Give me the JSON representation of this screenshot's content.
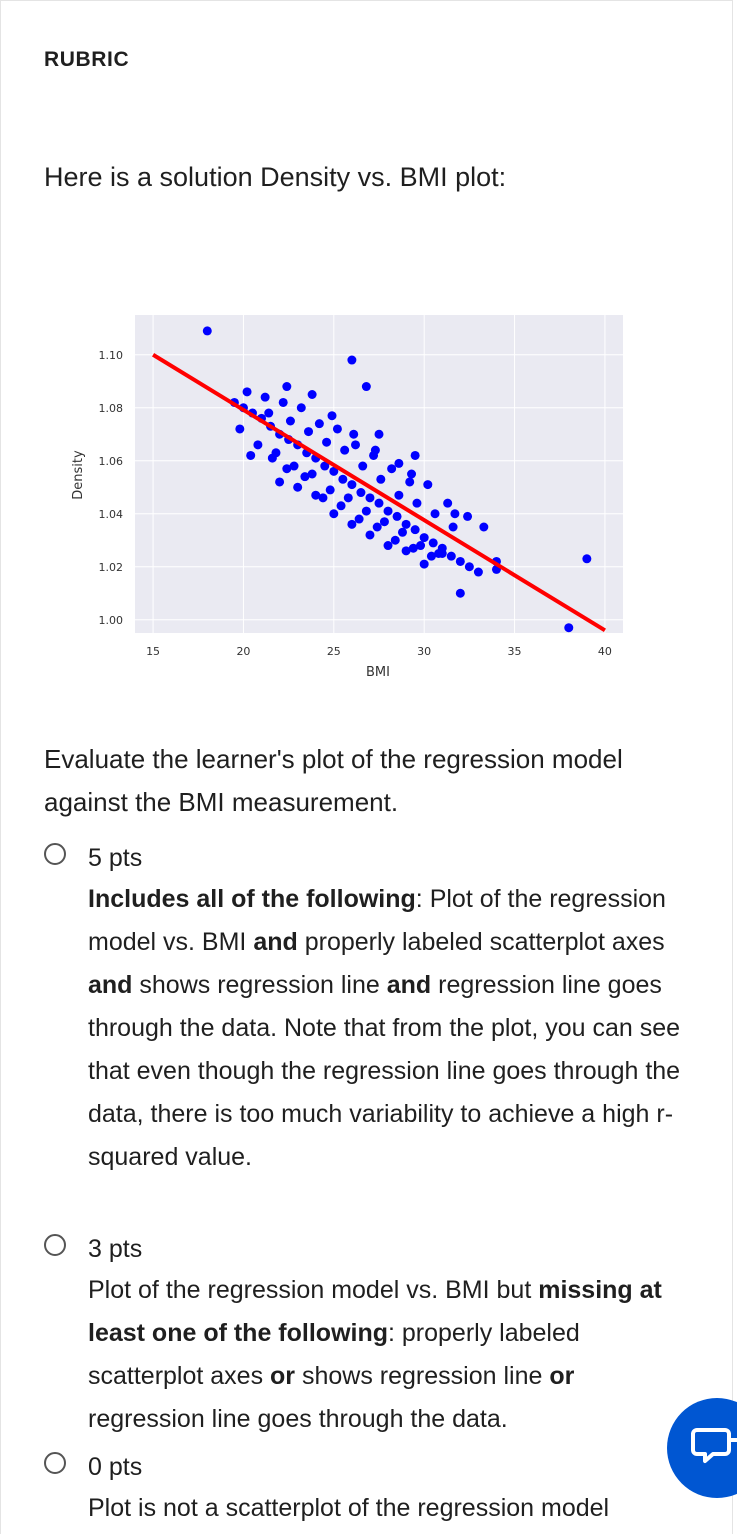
{
  "heading": "RUBRIC",
  "intro": "Here is a solution Density vs. BMI plot:",
  "question": "Evaluate the learner's plot of the regression model against the BMI measurement.",
  "options": [
    {
      "points": "5 pts",
      "parts": [
        "Includes all of the following",
        ": Plot of the regression model vs. BMI ",
        "and",
        " properly labeled scatterplot axes ",
        "and",
        " shows regression line ",
        "and",
        " regression line goes through the data. Note that from the plot, you can see that even though the regression line goes through the data, there is too much variability to achieve a high r-squared value."
      ]
    },
    {
      "points": "3 pts",
      "parts": [
        "Plot of the regression model vs. BMI but ",
        "missing at least one of the following",
        ": properly labeled scatterplot axes ",
        "or",
        " shows regression line ",
        "or",
        " regression line goes through the data."
      ]
    },
    {
      "points": "0 pts",
      "parts": [
        "Plot is not a scatterplot of the regression model"
      ]
    }
  ],
  "colors": {
    "accent": "#0056d2",
    "points": "#0000ff",
    "line": "#ff0000",
    "plot_bg": "#eaeaf2"
  },
  "chat_icon": "chat-icon",
  "chart_data": {
    "type": "scatter",
    "title": "",
    "xlabel": "BMI",
    "ylabel": "Density",
    "xlim": [
      14,
      41
    ],
    "ylim": [
      0.995,
      1.115
    ],
    "xticks": [
      "15",
      "20",
      "25",
      "30",
      "35",
      "40"
    ],
    "yticks": [
      "1.00",
      "1.02",
      "1.04",
      "1.06",
      "1.08",
      "1.10"
    ],
    "grid": true,
    "regression_line": {
      "x": [
        15,
        40
      ],
      "y": [
        1.1,
        0.996
      ]
    },
    "series": [
      {
        "x": [
          18,
          19.5,
          20,
          20.5,
          21,
          21.5,
          22,
          22.5,
          23,
          23.5,
          24,
          24.5,
          25,
          25.5,
          26,
          26.5,
          27,
          27.5,
          28,
          28.5,
          29,
          29.5,
          30,
          30.5,
          31,
          31.5,
          32,
          32.5,
          33,
          34,
          20.2,
          21.2,
          22.2,
          23.2,
          24.2,
          25.2,
          26.2,
          27.2,
          28.2,
          29.2,
          20.8,
          21.8,
          22.8,
          23.8,
          24.8,
          25.8,
          26.8,
          27.8,
          28.8,
          29.8,
          30.8,
          19.8,
          21.4,
          22.6,
          23.6,
          24.6,
          25.6,
          26.6,
          27.6,
          28.6,
          29.6,
          30.6,
          31.6,
          20.4,
          21.6,
          22.4,
          23.4,
          24.4,
          25.4,
          26.4,
          27.4,
          28.4,
          29.4,
          30.4,
          22.4,
          23.8,
          24.9,
          26.1,
          27.3,
          28.6,
          29.3,
          30.2,
          31.3,
          32.4,
          33.3,
          22,
          23,
          24,
          25,
          26,
          27,
          28,
          29,
          30,
          31,
          26,
          26.8,
          29.5,
          32,
          34,
          39,
          38,
          27.5,
          31.7
        ],
        "y": [
          1.109,
          1.082,
          1.08,
          1.078,
          1.076,
          1.073,
          1.07,
          1.068,
          1.066,
          1.063,
          1.061,
          1.058,
          1.056,
          1.053,
          1.051,
          1.048,
          1.046,
          1.044,
          1.041,
          1.039,
          1.036,
          1.034,
          1.031,
          1.029,
          1.027,
          1.024,
          1.022,
          1.02,
          1.018,
          1.022,
          1.086,
          1.084,
          1.082,
          1.08,
          1.074,
          1.072,
          1.066,
          1.062,
          1.057,
          1.052,
          1.066,
          1.063,
          1.058,
          1.055,
          1.049,
          1.046,
          1.041,
          1.037,
          1.033,
          1.028,
          1.025,
          1.072,
          1.078,
          1.075,
          1.071,
          1.067,
          1.064,
          1.058,
          1.053,
          1.047,
          1.044,
          1.04,
          1.035,
          1.062,
          1.061,
          1.057,
          1.054,
          1.046,
          1.043,
          1.038,
          1.035,
          1.03,
          1.027,
          1.024,
          1.088,
          1.085,
          1.077,
          1.07,
          1.064,
          1.059,
          1.055,
          1.051,
          1.044,
          1.039,
          1.035,
          1.052,
          1.05,
          1.047,
          1.04,
          1.036,
          1.032,
          1.028,
          1.026,
          1.021,
          1.025,
          1.098,
          1.088,
          1.062,
          1.01,
          1.019,
          1.023,
          0.997,
          1.07,
          1.04
        ]
      }
    ]
  }
}
